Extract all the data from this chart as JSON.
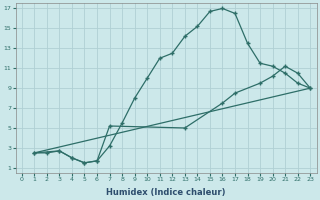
{
  "title": "",
  "xlabel": "Humidex (Indice chaleur)",
  "bg_color": "#cce8ea",
  "grid_color": "#b0d0d4",
  "line_color": "#2e6e68",
  "xlim": [
    -0.5,
    23.5
  ],
  "ylim": [
    0.5,
    17.5
  ],
  "xticks": [
    0,
    1,
    2,
    3,
    4,
    5,
    6,
    7,
    8,
    9,
    10,
    11,
    12,
    13,
    14,
    15,
    16,
    17,
    18,
    19,
    20,
    21,
    22,
    23
  ],
  "yticks": [
    1,
    3,
    5,
    7,
    9,
    11,
    13,
    15,
    17
  ],
  "line1_x": [
    1,
    2,
    3,
    4,
    5,
    6,
    7,
    8,
    9,
    10,
    11,
    12,
    13,
    14,
    15,
    16,
    17,
    18,
    19,
    20,
    21,
    22,
    23
  ],
  "line1_y": [
    2.5,
    2.5,
    2.7,
    2.0,
    1.5,
    1.7,
    3.2,
    5.5,
    8.0,
    10.0,
    12.0,
    12.5,
    14.2,
    15.2,
    16.7,
    17.0,
    16.5,
    13.5,
    11.5,
    11.2,
    10.5,
    9.5,
    9.0
  ],
  "line2_x": [
    1,
    3,
    4,
    5,
    6,
    7,
    13,
    16,
    17,
    19,
    20,
    21,
    22,
    23
  ],
  "line2_y": [
    2.5,
    2.7,
    2.0,
    1.5,
    1.7,
    5.2,
    5.0,
    7.5,
    8.5,
    9.5,
    10.2,
    11.2,
    10.5,
    9.0
  ],
  "line3_x": [
    1,
    23
  ],
  "line3_y": [
    2.5,
    9.0
  ],
  "marker_size": 2.5,
  "marker_style": "+"
}
